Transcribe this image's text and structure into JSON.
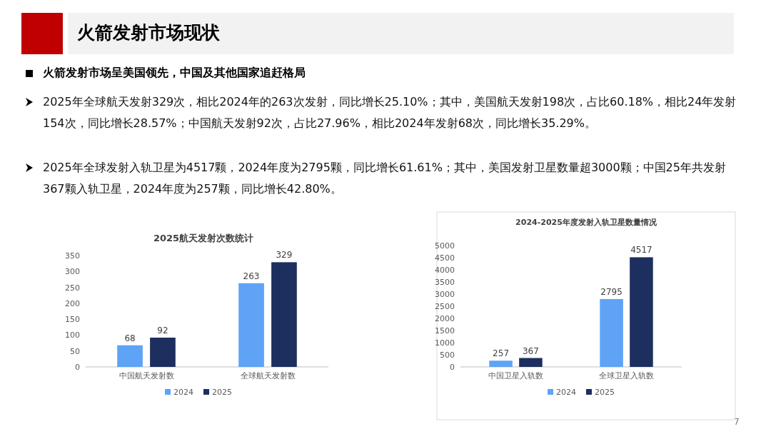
{
  "chart_data": [
    {
      "type": "other",
      "title": "火箭发射市场现状",
      "subtitle": "火箭发射市场呈美国领先，中国及其他国家追赶格局",
      "annotations": [
        "2025年全球航天发射329次，相比2024年的263次发射，同比增长25.10%；其中，美国航天发射198次，占比60.18%，相比24年发射154次，同比增长28.57%；中国航天发射92次，占比27.96%，相比2024年发射68次，同比增长35.29%。",
        "2025年全球发射入轨卫星为4517颗，2024年度为2795颗，同比增长61.61%；其中，美国发射卫星数量超3000颗；中国25年共发射367颗入轨卫星，2024年度为257颗，同比增长42.80%。",
        "7"
      ]
    },
    {
      "type": "bar",
      "title": "2025航天发射次数统计",
      "categories": [
        "中国航天发射数",
        "全球航天发射数"
      ],
      "series": [
        {
          "name": "2024",
          "color": "#5fa3f6",
          "values": [
            68,
            263
          ]
        },
        {
          "name": "2025",
          "color": "#1c2f5f",
          "values": [
            92,
            329
          ]
        }
      ],
      "ylim": [
        0,
        350
      ],
      "yticks": [
        0,
        50,
        100,
        150,
        200,
        250,
        300,
        350
      ],
      "data_labels": true,
      "legend": "bottom"
    },
    {
      "type": "bar",
      "title": "2024-2025年度发射入轨卫星数量情况",
      "categories": [
        "中国卫星入轨数",
        "全球卫星入轨数"
      ],
      "series": [
        {
          "name": "2024",
          "color": "#5fa3f6",
          "values": [
            257,
            2795
          ]
        },
        {
          "name": "2025",
          "color": "#1c2f5f",
          "values": [
            367,
            4517
          ]
        }
      ],
      "ylim": [
        0,
        5000
      ],
      "yticks": [
        0,
        500,
        1000,
        1500,
        2000,
        2500,
        3000,
        3500,
        4000,
        4500,
        5000
      ],
      "data_labels": true,
      "legend": "bottom"
    }
  ]
}
